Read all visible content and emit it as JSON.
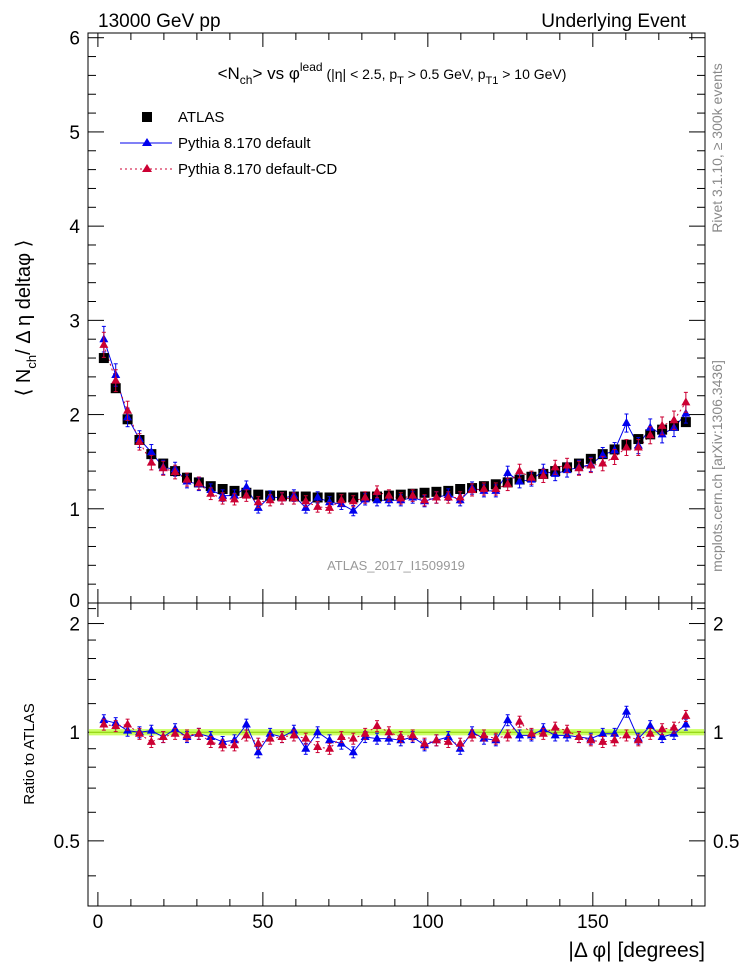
{
  "header": {
    "left": "13000 GeV pp",
    "right": "Underlying Event"
  },
  "side_text": {
    "upper": "Rivet 3.1.10, ≥ 300k events",
    "lower": "mcplots.cern.ch [arXiv:1306.3436]"
  },
  "watermark": "ATLAS_2017_I1509919",
  "chart_data": [
    {
      "type": "scatter",
      "panel": "main",
      "title_parts": {
        "t1": "<N",
        "t1_sub": "ch",
        "t2": "> vs φ",
        "t2_sup": "lead",
        "t3": " (|η| < 2.5, p",
        "t3_sub": "T",
        "t4": " > 0.5 GeV, p",
        "t4_sub": "T1",
        "t5": " > 10 GeV)"
      },
      "ylabel": "⟨ Nₙₕ/ Δ η deltaφ ⟩",
      "ylabel_parts": {
        "a": "⟨ N",
        "a_sub": "ch",
        "b": "/ Δ η deltaφ ⟩"
      },
      "xlim": [
        -3,
        184
      ],
      "ylim": [
        0,
        6.05
      ],
      "yticks": [
        1,
        2,
        3,
        4,
        5,
        6
      ],
      "ytick_labels": [
        "1",
        "2",
        "3",
        "4",
        "5",
        "6"
      ],
      "ytick_cut_label": "0",
      "legend": {
        "placement": "top-left",
        "entries": [
          "ATLAS",
          "Pythia 8.170 default",
          "Pythia 8.170 default-CD"
        ]
      },
      "x": [
        1.8,
        5.4,
        9.0,
        12.6,
        16.2,
        19.8,
        23.4,
        27.0,
        30.6,
        34.2,
        37.8,
        41.4,
        45.0,
        48.6,
        52.2,
        55.8,
        59.4,
        63.0,
        66.6,
        70.2,
        73.8,
        77.4,
        81.0,
        84.6,
        88.2,
        91.8,
        95.4,
        99.0,
        102.6,
        106.2,
        109.8,
        113.4,
        117.0,
        120.6,
        124.2,
        127.8,
        131.4,
        135.0,
        138.6,
        142.2,
        145.8,
        149.4,
        153.0,
        156.6,
        160.2,
        163.8,
        167.4,
        171.0,
        174.6,
        178.2
      ],
      "series": [
        {
          "name": "ATLAS",
          "color": "#000000",
          "marker": "square",
          "values": [
            2.6,
            2.28,
            1.95,
            1.73,
            1.58,
            1.48,
            1.4,
            1.33,
            1.28,
            1.24,
            1.21,
            1.19,
            1.17,
            1.15,
            1.14,
            1.14,
            1.13,
            1.13,
            1.12,
            1.12,
            1.12,
            1.12,
            1.13,
            1.13,
            1.14,
            1.15,
            1.16,
            1.17,
            1.18,
            1.19,
            1.21,
            1.22,
            1.24,
            1.26,
            1.28,
            1.31,
            1.34,
            1.37,
            1.4,
            1.44,
            1.48,
            1.53,
            1.58,
            1.63,
            1.68,
            1.74,
            1.79,
            1.84,
            1.88,
            1.92
          ]
        },
        {
          "name": "Pythia 8.170 default",
          "color": "#0000ee",
          "marker": "triangle",
          "line": "solid",
          "values": [
            2.8,
            2.42,
            1.97,
            1.74,
            1.6,
            1.44,
            1.42,
            1.29,
            1.26,
            1.2,
            1.14,
            1.14,
            1.23,
            1.01,
            1.13,
            1.11,
            1.14,
            1.01,
            1.12,
            1.07,
            1.05,
            0.98,
            1.1,
            1.09,
            1.09,
            1.09,
            1.12,
            1.08,
            1.12,
            1.15,
            1.09,
            1.22,
            1.19,
            1.19,
            1.38,
            1.29,
            1.31,
            1.4,
            1.37,
            1.41,
            1.44,
            1.47,
            1.57,
            1.62,
            1.91,
            1.67,
            1.86,
            1.79,
            1.86,
            2.01
          ]
        },
        {
          "name": "Pythia 8.170 default-CD",
          "color": "#cc0033",
          "marker": "triangle",
          "line": "dotted",
          "values": [
            2.74,
            2.36,
            2.04,
            1.71,
            1.49,
            1.43,
            1.39,
            1.31,
            1.27,
            1.16,
            1.11,
            1.1,
            1.14,
            1.07,
            1.09,
            1.11,
            1.11,
            1.08,
            1.02,
            1.01,
            1.09,
            1.08,
            1.12,
            1.18,
            1.14,
            1.11,
            1.14,
            1.09,
            1.12,
            1.12,
            1.12,
            1.2,
            1.21,
            1.21,
            1.26,
            1.4,
            1.33,
            1.35,
            1.44,
            1.46,
            1.43,
            1.46,
            1.48,
            1.55,
            1.65,
            1.65,
            1.78,
            1.88,
            1.94,
            2.13
          ]
        }
      ]
    },
    {
      "type": "scatter",
      "panel": "ratio",
      "ylabel": "Ratio to ATLAS",
      "xlabel": "|Δ φ| [degrees]",
      "xlim": [
        -3,
        184
      ],
      "xticks": [
        0,
        50,
        100,
        150
      ],
      "xtick_labels": [
        "0",
        "50",
        "100",
        "150"
      ],
      "ylim": [
        0.33,
        2.28
      ],
      "yticks": [
        0.5,
        1,
        2
      ],
      "ytick_labels": [
        "0.5",
        "1",
        "2"
      ],
      "band": {
        "color": "#ccff66",
        "line_color": "#88cc00",
        "half_width": 0.02
      },
      "series": [
        {
          "name": "Pythia 8.170 default",
          "color": "#0000ee",
          "values": [
            1.08,
            1.06,
            1.01,
            1.0,
            1.01,
            0.97,
            1.02,
            0.97,
            0.99,
            0.97,
            0.94,
            0.95,
            1.05,
            0.88,
            0.99,
            0.97,
            1.01,
            0.9,
            1.0,
            0.95,
            0.93,
            0.88,
            0.97,
            0.96,
            0.96,
            0.95,
            0.97,
            0.92,
            0.95,
            0.97,
            0.9,
            1.0,
            0.96,
            0.95,
            1.08,
            0.98,
            0.98,
            1.02,
            0.98,
            0.98,
            0.97,
            0.96,
            0.99,
            0.99,
            1.14,
            0.96,
            1.04,
            0.97,
            0.99,
            1.05
          ]
        },
        {
          "name": "Pythia 8.170 default-CD",
          "color": "#cc0033",
          "values": [
            1.05,
            1.04,
            1.05,
            0.99,
            0.94,
            0.97,
            0.99,
            0.98,
            0.99,
            0.94,
            0.92,
            0.92,
            0.98,
            0.93,
            0.96,
            0.97,
            0.98,
            0.96,
            0.91,
            0.9,
            0.97,
            0.96,
            0.99,
            1.04,
            1.0,
            0.97,
            0.98,
            0.93,
            0.95,
            0.94,
            0.93,
            0.98,
            0.98,
            0.96,
            0.98,
            1.07,
            0.99,
            0.99,
            1.03,
            1.01,
            0.97,
            0.95,
            0.94,
            0.95,
            0.98,
            0.95,
            0.99,
            1.02,
            1.03,
            1.11
          ]
        }
      ]
    }
  ]
}
